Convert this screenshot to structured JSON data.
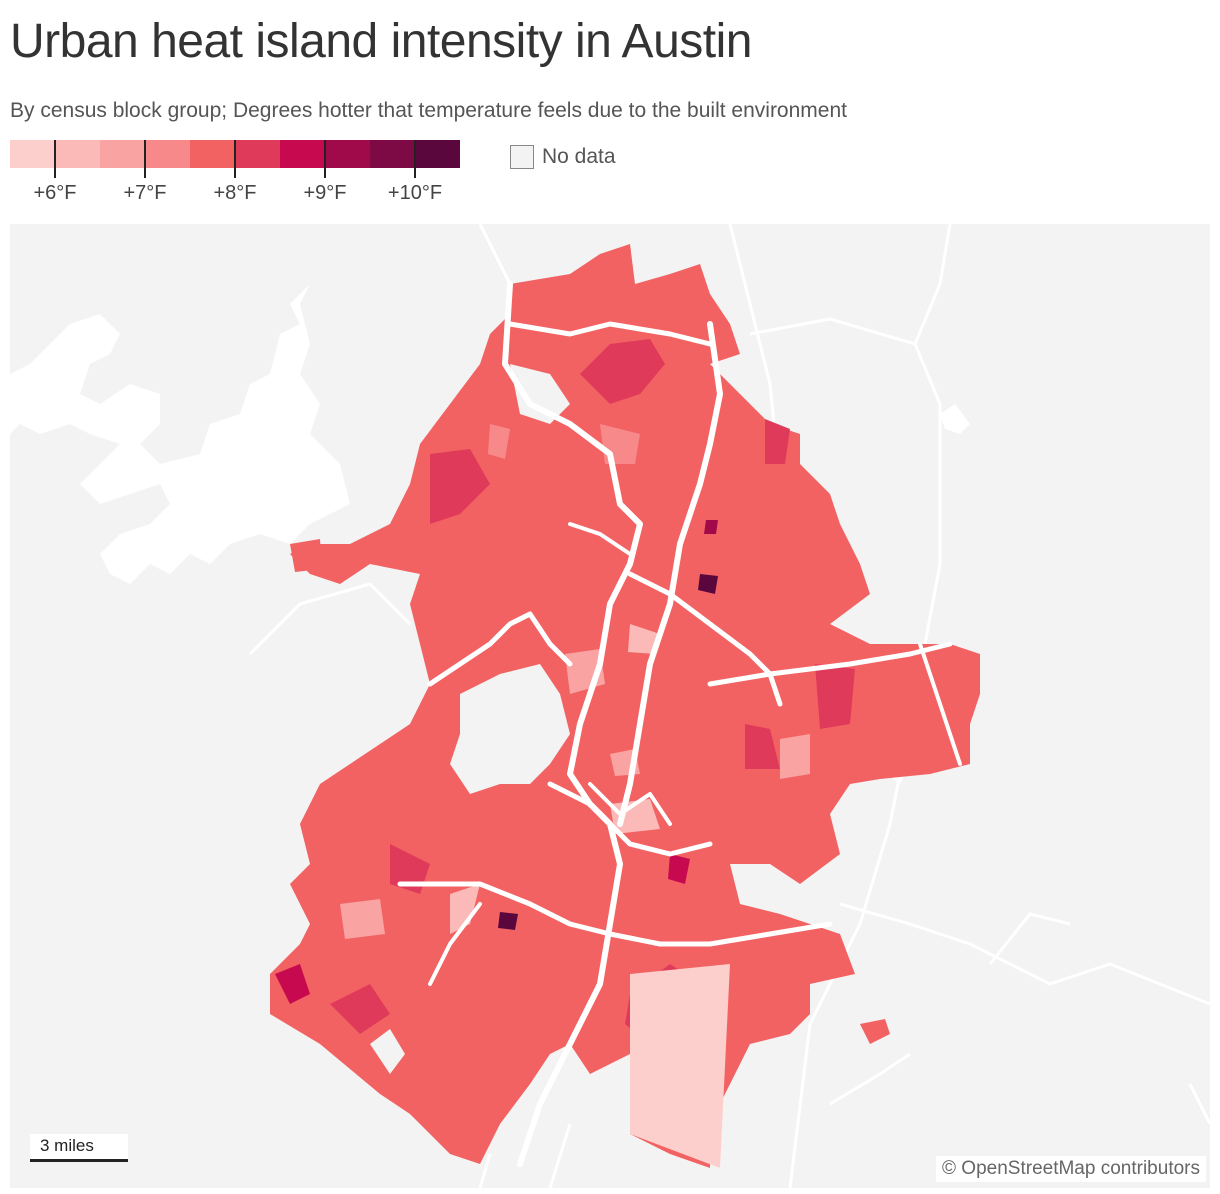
{
  "title": "Urban heat island intensity in Austin",
  "subtitle": "By census block group; Degrees hotter that temperature feels due to the built environment",
  "legend": {
    "colors": [
      "#fdcfcc",
      "#fbbab8",
      "#f9a3a3",
      "#f7898a",
      "#f26262",
      "#e03a5a",
      "#c7094f",
      "#a00a4a",
      "#7d0a44",
      "#5a073e"
    ],
    "ticks": [
      "+6°F",
      "+7°F",
      "+8°F",
      "+9°F",
      "+10°F"
    ],
    "nodata_label": "No data",
    "nodata_color": "#f3f3f3"
  },
  "map": {
    "background": "#f3f3f3",
    "base_fill": "#f26262",
    "water_color": "#ffffff",
    "scale_label": "3 miles",
    "attribution": "© OpenStreetMap contributors"
  }
}
